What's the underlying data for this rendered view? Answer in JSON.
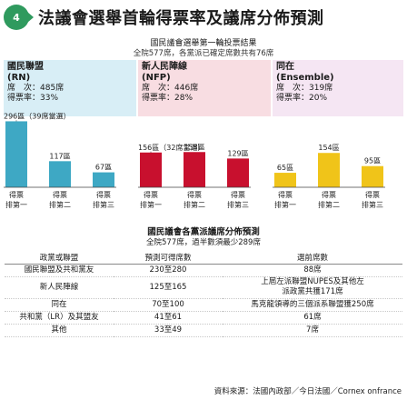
{
  "header": {
    "logo_text": "4",
    "title": "法議會選舉首輪得票率及議席分佈預測"
  },
  "summary": {
    "title": "國民議會選舉第一輪投票結果",
    "subtitle": "全院577席，各黨派已確定席數共有76席"
  },
  "colors": {
    "rn": "#3ea8c4",
    "rn_band": "#d8eef6",
    "nfp": "#c8102e",
    "nfp_band": "#f8dde2",
    "ens": "#f0c419",
    "ens_band": "#f5e6f3",
    "rn_icon": "#2f9a5e"
  },
  "blocs": [
    {
      "name": "國民聯盟",
      "abbr": "(RN)",
      "seats_label": "席　次：",
      "seats": "485席",
      "share_label": "得票率：",
      "share": "33%",
      "bar_color_key": "rn"
    },
    {
      "name": "新人民陣線",
      "abbr": "(NFP)",
      "seats_label": "席　次：",
      "seats": "446席",
      "share_label": "得票率：",
      "share": "28%",
      "bar_color_key": "nfp"
    },
    {
      "name": "同在",
      "abbr": "(Ensemble)",
      "seats_label": "席　次：",
      "seats": "319席",
      "share_label": "得票率：",
      "share": "20%",
      "bar_color_key": "ens"
    }
  ],
  "chart_data": {
    "type": "bar",
    "title": "國民議會選舉第一輪投票結果",
    "categories": [
      "得票排第一",
      "得票排第二",
      "得票排第三"
    ],
    "series": [
      {
        "name": "國民聯盟",
        "values": [
          296,
          117,
          67
        ],
        "labels": [
          "296區（39席當選）",
          "117區",
          "67區"
        ]
      },
      {
        "name": "新人民陣線",
        "values": [
          156,
          158,
          129
        ],
        "labels": [
          "156區（32席當選）",
          "158區",
          "129區"
        ]
      },
      {
        "name": "同在",
        "values": [
          65,
          154,
          95
        ],
        "labels": [
          "65區",
          "154區",
          "95區"
        ]
      }
    ],
    "ylim": [
      0,
      310
    ]
  },
  "projection": {
    "title": "國民議會各黨派議席分佈預測",
    "subtitle": "全院577席，過半數須最少289席",
    "headers": [
      "政黨或聯盟",
      "預測可得席數",
      "選前席數"
    ],
    "rows": [
      {
        "party": "國民聯盟及共和黨友",
        "projection": "230至280",
        "previous": "88席"
      },
      {
        "party": "新人民陣線",
        "projection": "125至165",
        "previous": "上屆左派聯盟NUPES及其他左派政黨共獲171席"
      },
      {
        "party": "同在",
        "projection": "70至100",
        "previous": "馬克龍領導的三個派系聯盟獲250席"
      },
      {
        "party": "共和黨（LR）及其盟友",
        "projection": "41至61",
        "previous": "61席"
      },
      {
        "party": "其他",
        "projection": "33至49",
        "previous": "7席"
      }
    ]
  },
  "source": "資料來源：法國內政部／今日法國／Cornex onfrance"
}
